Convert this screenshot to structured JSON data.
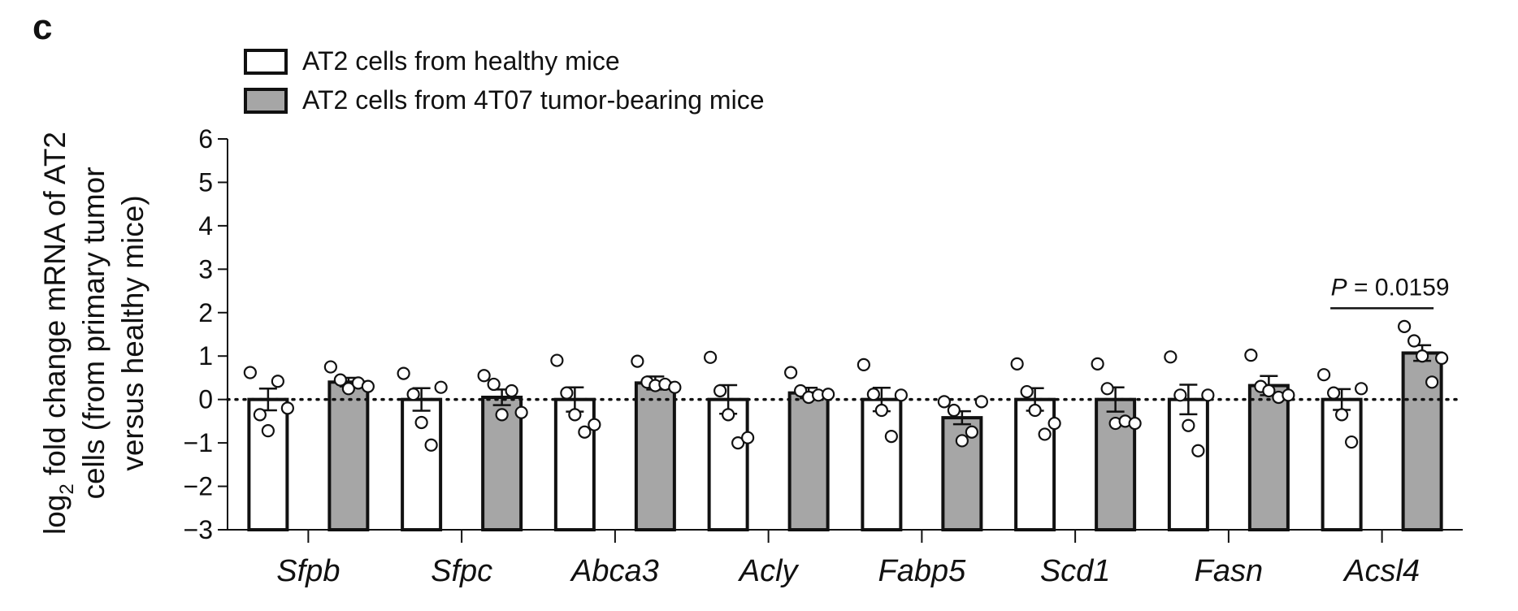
{
  "panel_label": "c",
  "chart_data": {
    "type": "bar",
    "title": "",
    "ylabel_lines": [
      [
        "log",
        "2",
        " fold change mRNA of AT2"
      ],
      [
        "cells (from primary tumor"
      ],
      [
        "versus healthy mice)"
      ]
    ],
    "ylim": [
      -3,
      6
    ],
    "yticks": [
      6,
      5,
      4,
      3,
      2,
      1,
      0,
      -1,
      -2,
      -3
    ],
    "reference_line_y": 0,
    "categories": [
      "Sfpb",
      "Sfpc",
      "Abca3",
      "Acly",
      "Fabp5",
      "Scd1",
      "Fasn",
      "Acsl4"
    ],
    "legend_position": "top-left",
    "series": [
      {
        "name": "AT2 cells from healthy mice",
        "color": "#ffffff",
        "values": [
          0.0,
          0.0,
          0.0,
          0.0,
          0.0,
          0.0,
          0.0,
          0.0
        ],
        "sem": [
          0.25,
          0.26,
          0.28,
          0.33,
          0.27,
          0.26,
          0.34,
          0.24
        ],
        "points": [
          [
            0.62,
            -0.35,
            -0.72,
            0.42,
            -0.2
          ],
          [
            0.6,
            0.12,
            -0.53,
            -1.05,
            0.28
          ],
          [
            0.9,
            0.15,
            -0.35,
            -0.75,
            -0.58
          ],
          [
            0.97,
            0.2,
            -0.35,
            -1.0,
            -0.88
          ],
          [
            0.8,
            0.12,
            -0.25,
            -0.85,
            0.1
          ],
          [
            0.82,
            0.18,
            -0.25,
            -0.8,
            -0.55
          ],
          [
            0.98,
            0.1,
            -0.6,
            -1.18,
            0.1
          ],
          [
            0.57,
            0.15,
            -0.35,
            -0.98,
            0.25
          ]
        ]
      },
      {
        "name": "AT2 cells from 4T07 tumor-bearing mice",
        "color": "#a6a6a6",
        "values": [
          0.4,
          0.05,
          0.38,
          0.15,
          -0.42,
          0.0,
          0.32,
          1.07
        ],
        "sem": [
          0.1,
          0.18,
          0.15,
          0.12,
          0.15,
          0.28,
          0.22,
          0.18
        ],
        "points": [
          [
            0.75,
            0.45,
            0.25,
            0.38,
            0.3
          ],
          [
            0.55,
            0.35,
            -0.35,
            0.2,
            -0.3
          ],
          [
            0.88,
            0.4,
            0.32,
            0.35,
            0.28
          ],
          [
            0.62,
            0.2,
            0.05,
            0.1,
            0.12
          ],
          [
            -0.05,
            -0.25,
            -0.95,
            -0.75,
            -0.05
          ],
          [
            0.82,
            0.25,
            -0.55,
            -0.5,
            -0.55
          ],
          [
            1.02,
            0.3,
            0.2,
            0.05,
            0.1
          ],
          [
            1.68,
            1.35,
            1.0,
            0.4,
            0.95
          ]
        ]
      }
    ],
    "annotation": {
      "category": "Acsl4",
      "label_prefix": "P",
      "label_rest": " = 0.0159",
      "y": 2.1
    }
  }
}
